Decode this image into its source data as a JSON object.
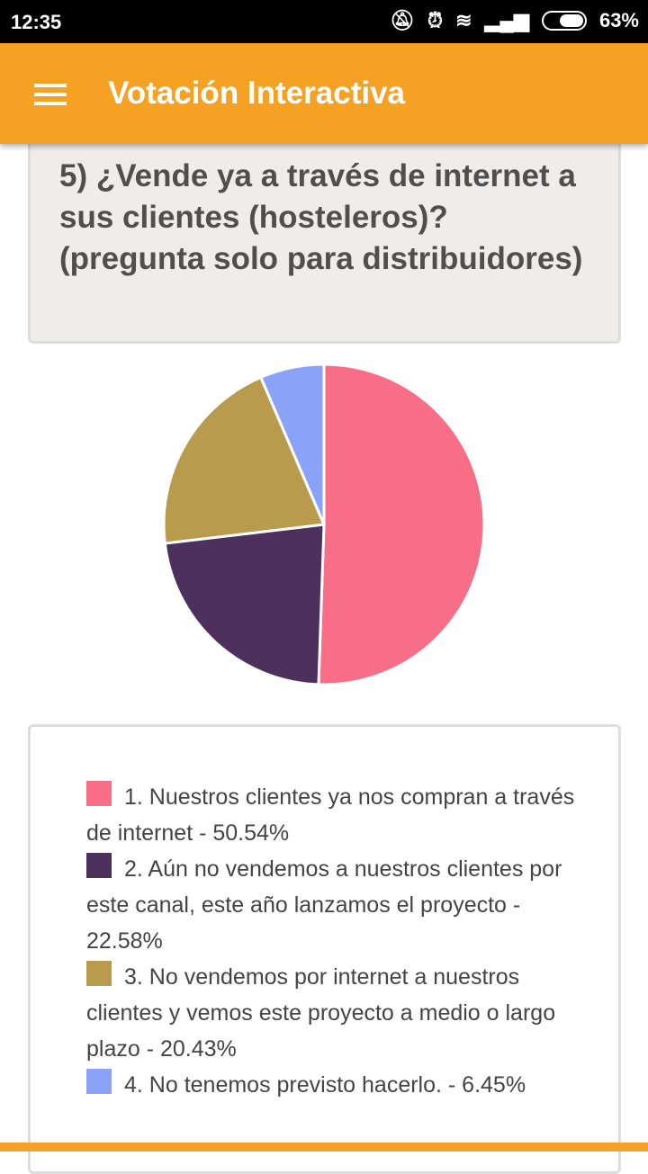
{
  "status": {
    "time": "12:35",
    "battery": "63%"
  },
  "appbar": {
    "title": "Votación Interactiva"
  },
  "question": "5) ¿Vende ya a través de internet a sus clientes (hosteleros)? (pregunta solo para distribuidores)",
  "chart_data": {
    "type": "pie",
    "title": "",
    "slices": [
      {
        "label": "1. Nuestros clientes ya nos compran a través de internet - 50.54%",
        "value": 50.54,
        "color": "#f86e87"
      },
      {
        "label": "2. Aún no vendemos a nuestros clientes por este canal, este año lanzamos el proyecto - 22.58%",
        "value": 22.58,
        "color": "#4b315c"
      },
      {
        "label": "3. No vendemos por internet a nuestros clientes y vemos este proyecto a medio o largo plazo - 20.43%",
        "value": 20.43,
        "color": "#b99b4d"
      },
      {
        "label": "4. No tenemos previsto hacerlo. - 6.45%",
        "value": 6.45,
        "color": "#8aa3f8"
      }
    ],
    "legend": "bottom"
  }
}
